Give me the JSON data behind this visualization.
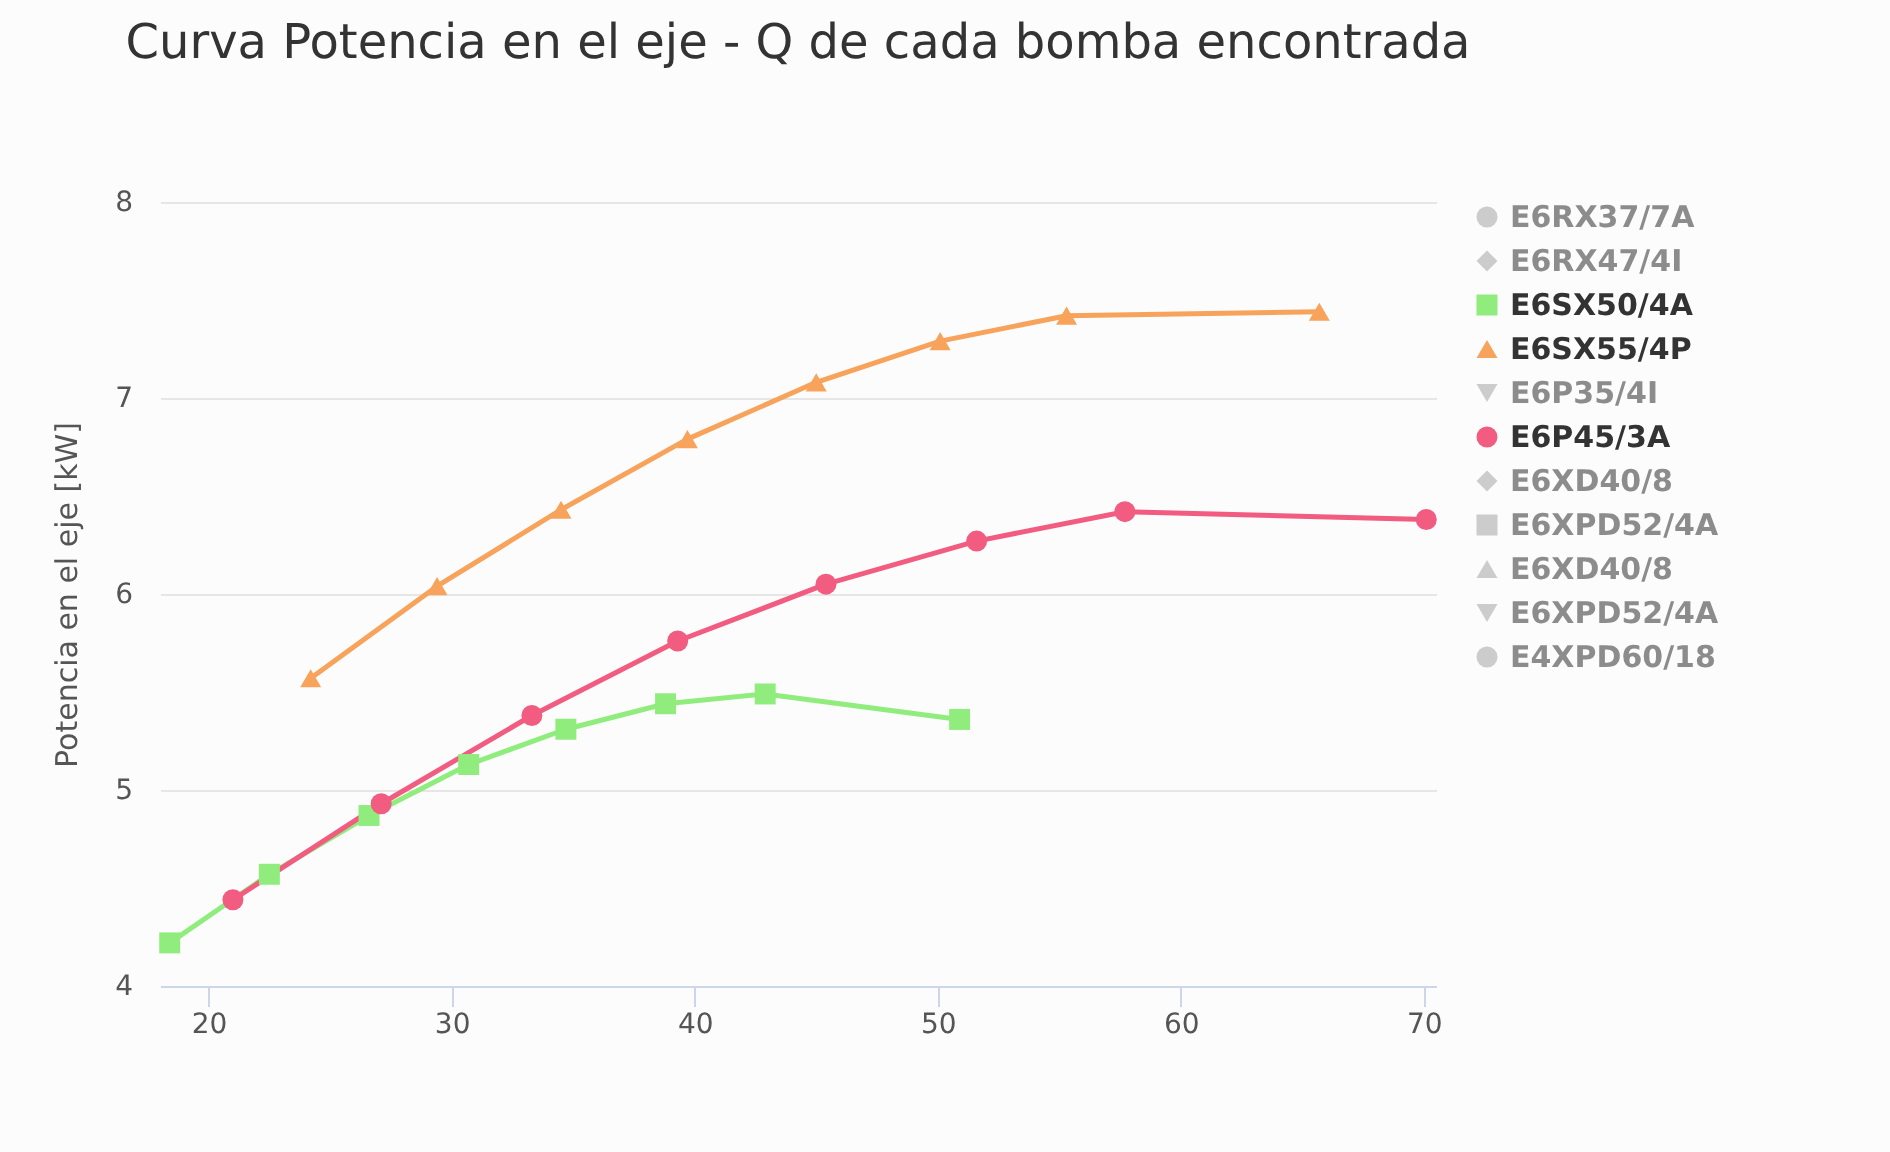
{
  "chart_data": {
    "type": "line",
    "title": "Curva Potencia en el eje - Q de cada bomba encontrada",
    "ylabel": "Potencia en el eje [kW]",
    "xlim": [
      18,
      70.5
    ],
    "xticks": [
      20,
      30,
      40,
      50,
      60,
      70
    ],
    "ylim": [
      4,
      8
    ],
    "yticks": [
      4,
      5,
      6,
      7,
      8
    ],
    "grid": "y",
    "legend": "right",
    "line_style": "solid",
    "series": [
      {
        "name": "E6RX37/7A",
        "color": "#cccccc",
        "marker": "circle"
      },
      {
        "name": "E6RX47/4I",
        "color": "#cccccc",
        "marker": "diamond"
      },
      {
        "name": "E6SX50/4A",
        "color": "#90ed7d",
        "marker": "square",
        "x": [
          18.4,
          22.5,
          26.6,
          30.7,
          34.7,
          38.8,
          42.9,
          50.9
        ],
        "values": [
          4.22,
          4.57,
          4.87,
          5.13,
          5.31,
          5.44,
          5.49,
          5.36
        ]
      },
      {
        "name": "E6SX55/4P",
        "color": "#f7a35c",
        "marker": "triangle",
        "x": [
          24.2,
          29.4,
          34.5,
          39.7,
          45.0,
          50.1,
          55.3,
          65.7
        ],
        "values": [
          5.57,
          6.04,
          6.43,
          6.79,
          7.08,
          7.29,
          7.42,
          7.44
        ]
      },
      {
        "name": "E6P35/4I",
        "color": "#cccccc",
        "marker": "triangle-down"
      },
      {
        "name": "E6P45/3A",
        "color": "#f15c80",
        "marker": "circle",
        "x": [
          21.0,
          27.1,
          33.3,
          39.3,
          45.4,
          51.6,
          57.7,
          70.1
        ],
        "values": [
          4.44,
          4.93,
          5.38,
          5.76,
          6.05,
          6.27,
          6.42,
          6.38
        ]
      },
      {
        "name": "E6XD40/8",
        "color": "#cccccc",
        "marker": "diamond"
      },
      {
        "name": "E6XPD52/4A",
        "color": "#cccccc",
        "marker": "square"
      },
      {
        "name": "E6XD40/8",
        "color": "#cccccc",
        "marker": "triangle"
      },
      {
        "name": "E6XPD52/4A",
        "color": "#cccccc",
        "marker": "triangle-down"
      },
      {
        "name": "E4XPD60/18",
        "color": "#cccccc",
        "marker": "circle"
      }
    ]
  }
}
